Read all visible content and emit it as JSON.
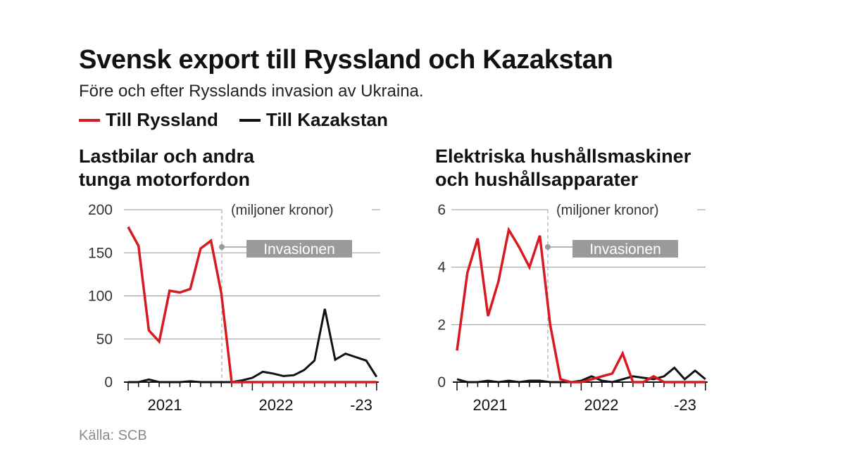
{
  "title": "Svensk export till Ryssland och Kazakstan",
  "subtitle": "Före och efter Rysslands invasion av Ukraina.",
  "legend": [
    {
      "label": "Till Ryssland",
      "color": "#d71920"
    },
    {
      "label": "Till Kazakstan",
      "color": "#111111"
    }
  ],
  "source": "Källa: SCB",
  "chart_data": [
    {
      "type": "line",
      "title": "Lastbilar och andra tunga motorfordon",
      "title_lines": [
        "Lastbilar och andra",
        "tunga motorfordon"
      ],
      "unit_label": "(miljoner kronor)",
      "annotation": "Invasionen",
      "yticks": [
        "0",
        "50",
        "100",
        "150",
        "200"
      ],
      "ylim": [
        0,
        200
      ],
      "xtick_labels": [
        "2021",
        "2022",
        "-23"
      ],
      "grid": true,
      "series": [
        {
          "name": "Till Ryssland",
          "color": "#d71920",
          "values": [
            180,
            158,
            60,
            47,
            106,
            104,
            108,
            155,
            164,
            103,
            0,
            0,
            0,
            0,
            0,
            0,
            0,
            0,
            0,
            0,
            0,
            0,
            0,
            0,
            0
          ]
        },
        {
          "name": "Till Kazakstan",
          "color": "#111111",
          "values": [
            0,
            0,
            3,
            0,
            0,
            0,
            1,
            0,
            0,
            0,
            0,
            2,
            5,
            12,
            10,
            7,
            8,
            14,
            25,
            85,
            26,
            33,
            29,
            25,
            6
          ]
        }
      ]
    },
    {
      "type": "line",
      "title": "Elektriska hushållsmaskiner och hushållsapparater",
      "title_lines": [
        "Elektriska hushållsmaskiner",
        "och hushållsapparater"
      ],
      "unit_label": "(miljoner kronor)",
      "annotation": "Invasionen",
      "yticks": [
        "0",
        "2",
        "4",
        "6"
      ],
      "ylim": [
        0,
        6
      ],
      "xtick_labels": [
        "2021",
        "2022",
        "-23"
      ],
      "grid": true,
      "series": [
        {
          "name": "Till Ryssland",
          "color": "#d71920",
          "values": [
            1.1,
            3.8,
            5.0,
            2.3,
            3.5,
            5.3,
            4.7,
            4.0,
            5.1,
            2.0,
            0.1,
            0.0,
            0.0,
            0.1,
            0.2,
            0.3,
            1.0,
            0.0,
            0.0,
            0.2,
            0.0,
            0.0,
            0.0,
            0.0,
            0.0
          ]
        },
        {
          "name": "Till Kazakstan",
          "color": "#111111",
          "values": [
            0.1,
            0.0,
            0.0,
            0.05,
            0.0,
            0.05,
            0.0,
            0.05,
            0.05,
            0.0,
            0.0,
            0.0,
            0.05,
            0.2,
            0.05,
            0.0,
            0.1,
            0.2,
            0.15,
            0.1,
            0.2,
            0.5,
            0.1,
            0.4,
            0.1
          ]
        }
      ]
    }
  ]
}
